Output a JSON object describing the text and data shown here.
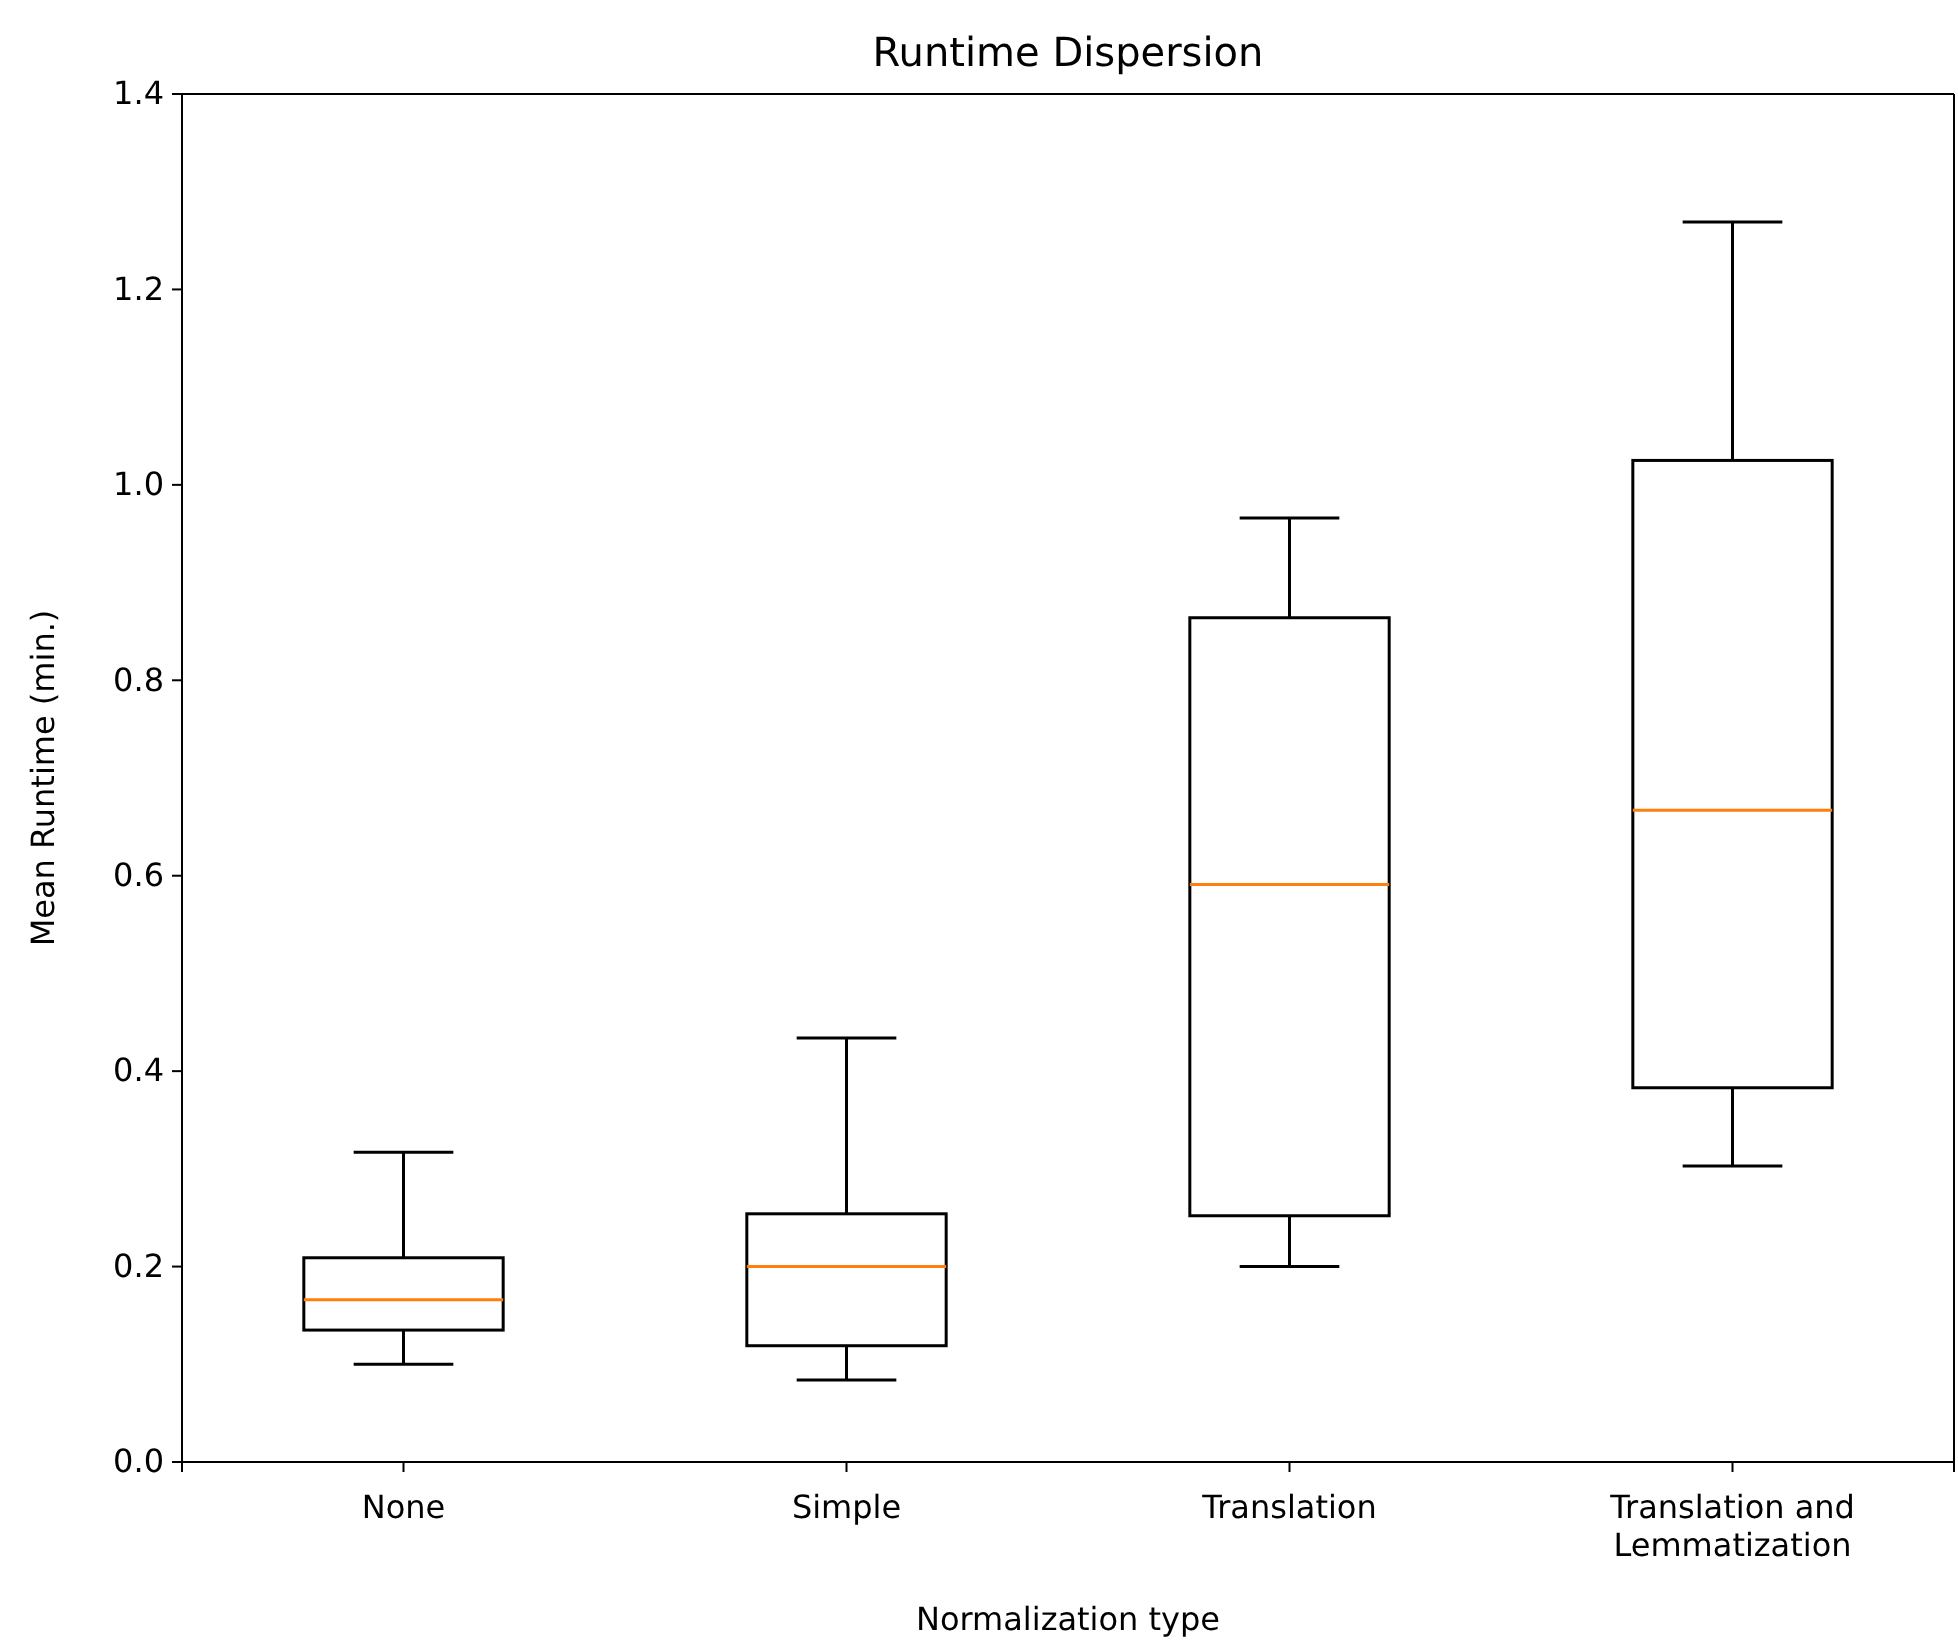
{
  "chart_data": {
    "type": "box",
    "title": "Runtime Dispersion",
    "xlabel": "Normalization type",
    "ylabel": "Mean Runtime (min.)",
    "categories": [
      "None",
      "Simple",
      "Translation",
      "Translation and\nLemmatization"
    ],
    "boxes": [
      {
        "low": 0.1,
        "q1": 0.135,
        "median": 0.166,
        "q3": 0.209,
        "high": 0.317
      },
      {
        "low": 0.084,
        "q1": 0.119,
        "median": 0.2,
        "q3": 0.254,
        "high": 0.434
      },
      {
        "low": 0.2,
        "q1": 0.252,
        "median": 0.591,
        "q3": 0.864,
        "high": 0.966
      },
      {
        "low": 0.303,
        "q1": 0.383,
        "median": 0.667,
        "q3": 1.025,
        "high": 1.269
      }
    ],
    "color": "#000000",
    "ylim": [
      0,
      1.4
    ],
    "yticks": [
      {
        "value": 0,
        "label": "0.0"
      },
      {
        "value": 0.2,
        "label": "0.2"
      },
      {
        "value": 0.4,
        "label": "0.4"
      },
      {
        "value": 0.6,
        "label": "0.6"
      },
      {
        "value": 0.8,
        "label": "0.8"
      },
      {
        "value": 1.0,
        "label": "1.0"
      },
      {
        "value": 1.2,
        "label": "1.2"
      },
      {
        "value": 1.4,
        "label": "1.4"
      }
    ],
    "grid": false
  }
}
